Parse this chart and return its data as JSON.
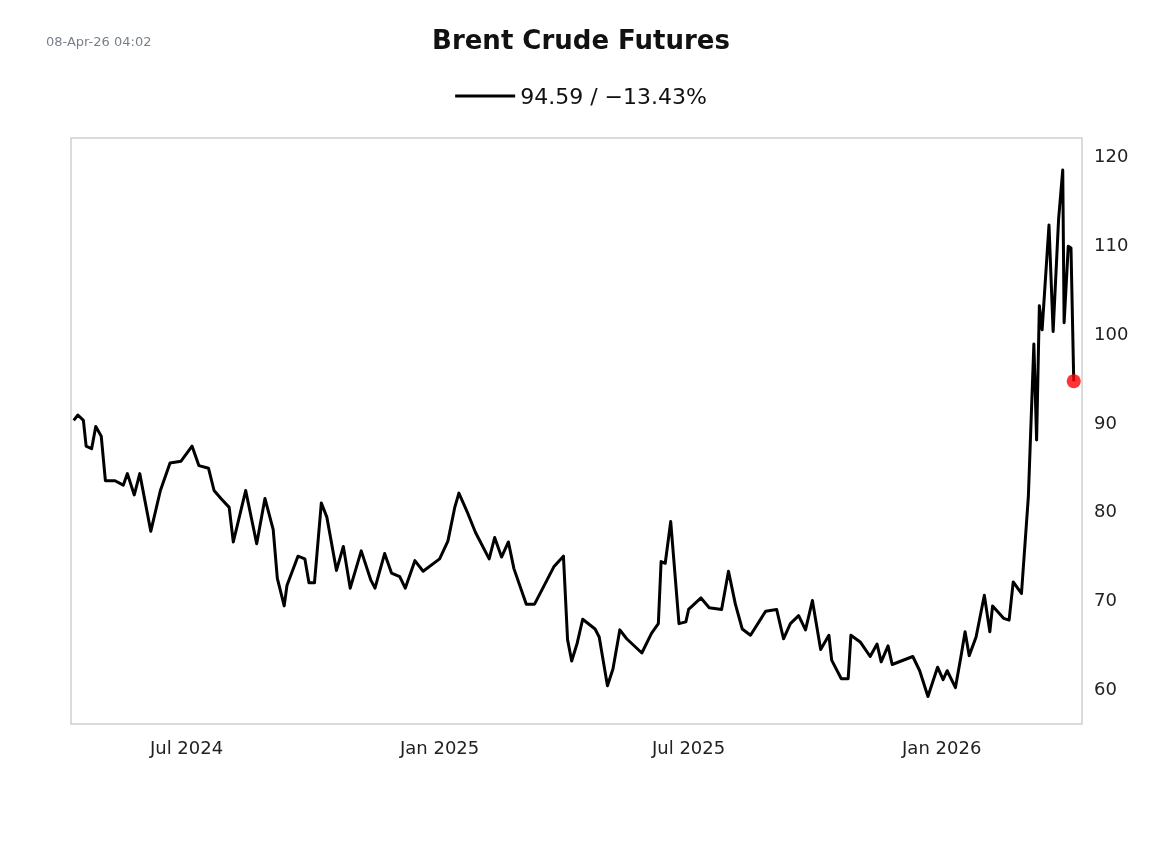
{
  "chart_data": {
    "type": "line",
    "title": "Brent Crude Futures",
    "annotations": [
      "08-Apr-26 04:02"
    ],
    "legend": "top",
    "grid": false,
    "xlim": [
      "2024-04-08",
      "2026-04-13"
    ],
    "ylim": [
      56,
      122
    ],
    "xticks": [
      {
        "value": "2024-07-01",
        "label": "Jul 2024"
      },
      {
        "value": "2025-01-01",
        "label": "Jan 2025"
      },
      {
        "value": "2025-07-01",
        "label": "Jul 2025"
      },
      {
        "value": "2026-01-01",
        "label": "Jan 2026"
      }
    ],
    "yticks": [
      60,
      70,
      80,
      90,
      100,
      110,
      120
    ],
    "series": [
      {
        "name": "94.59 / −13.43%",
        "color": "#000000",
        "x": [
          "2024-04-10",
          "2024-04-13",
          "2024-04-17",
          "2024-04-19",
          "2024-04-23",
          "2024-04-26",
          "2024-04-30",
          "2024-05-03",
          "2024-05-10",
          "2024-05-16",
          "2024-05-19",
          "2024-05-24",
          "2024-05-28",
          "2024-06-05",
          "2024-06-12",
          "2024-06-19",
          "2024-06-27",
          "2024-07-05",
          "2024-07-10",
          "2024-07-17",
          "2024-07-21",
          "2024-07-26",
          "2024-08-01",
          "2024-08-04",
          "2024-08-13",
          "2024-08-21",
          "2024-08-27",
          "2024-09-02",
          "2024-09-05",
          "2024-09-10",
          "2024-09-12",
          "2024-09-20",
          "2024-09-25",
          "2024-09-28",
          "2024-10-02",
          "2024-10-07",
          "2024-10-11",
          "2024-10-18",
          "2024-10-23",
          "2024-10-28",
          "2024-11-05",
          "2024-11-12",
          "2024-11-15",
          "2024-11-22",
          "2024-11-27",
          "2024-12-03",
          "2024-12-07",
          "2024-12-14",
          "2024-12-20",
          "2025-01-01",
          "2025-01-07",
          "2025-01-12",
          "2025-01-15",
          "2025-01-21",
          "2025-01-27",
          "2025-02-06",
          "2025-02-10",
          "2025-02-15",
          "2025-02-20",
          "2025-02-24",
          "2025-03-05",
          "2025-03-11",
          "2025-03-16",
          "2025-03-25",
          "2025-04-01",
          "2025-04-04",
          "2025-04-07",
          "2025-04-11",
          "2025-04-15",
          "2025-04-24",
          "2025-04-27",
          "2025-05-03",
          "2025-05-07",
          "2025-05-12",
          "2025-05-17",
          "2025-05-28",
          "2025-06-04",
          "2025-06-09",
          "2025-06-11",
          "2025-06-14",
          "2025-06-18",
          "2025-06-24",
          "2025-06-29",
          "2025-07-01",
          "2025-07-10",
          "2025-07-16",
          "2025-07-25",
          "2025-07-30",
          "2025-08-04",
          "2025-08-09",
          "2025-08-15",
          "2025-08-26",
          "2025-09-03",
          "2025-09-08",
          "2025-09-13",
          "2025-09-19",
          "2025-09-24",
          "2025-09-29",
          "2025-10-05",
          "2025-10-11",
          "2025-10-13",
          "2025-10-20",
          "2025-10-25",
          "2025-10-27",
          "2025-11-03",
          "2025-11-10",
          "2025-11-15",
          "2025-11-18",
          "2025-11-23",
          "2025-11-26",
          "2025-12-11",
          "2025-12-16",
          "2025-12-22",
          "2025-12-29",
          "2026-01-02",
          "2026-01-05",
          "2026-01-11",
          "2026-01-15",
          "2026-01-18",
          "2026-01-21",
          "2026-01-26",
          "2026-02-01",
          "2026-02-05",
          "2026-02-07",
          "2026-02-15",
          "2026-02-19",
          "2026-02-22",
          "2026-02-28",
          "2026-03-05",
          "2026-03-09",
          "2026-03-11",
          "2026-03-13",
          "2026-03-15",
          "2026-03-20",
          "2026-03-23",
          "2026-03-27",
          "2026-03-30",
          "2026-03-31",
          "2026-04-03",
          "2026-04-05",
          "2026-04-07"
        ],
        "values": [
          90.2,
          90.8,
          90.2,
          87.3,
          87.0,
          89.5,
          88.4,
          83.4,
          83.4,
          82.9,
          84.2,
          81.8,
          84.2,
          77.7,
          82.3,
          85.4,
          85.6,
          87.3,
          85.1,
          84.8,
          82.3,
          81.4,
          80.4,
          76.5,
          82.3,
          76.3,
          81.4,
          77.9,
          72.4,
          69.3,
          71.6,
          74.9,
          74.6,
          71.9,
          71.9,
          80.9,
          79.3,
          73.3,
          76.0,
          71.3,
          75.5,
          72.2,
          71.3,
          75.2,
          73.0,
          72.6,
          71.3,
          74.4,
          73.2,
          74.6,
          76.6,
          80.4,
          82.0,
          79.9,
          77.6,
          74.6,
          77.0,
          74.8,
          76.5,
          73.5,
          69.5,
          69.5,
          71.0,
          73.7,
          74.9,
          65.5,
          63.1,
          65.1,
          67.8,
          66.7,
          65.8,
          60.3,
          62.2,
          66.6,
          65.6,
          64.0,
          66.2,
          67.3,
          74.3,
          74.1,
          78.8,
          67.3,
          67.5,
          68.9,
          70.2,
          69.1,
          68.9,
          73.2,
          69.5,
          66.7,
          66.0,
          68.7,
          68.9,
          65.6,
          67.3,
          68.2,
          66.6,
          69.9,
          64.4,
          66.0,
          63.2,
          61.1,
          61.1,
          66.0,
          65.2,
          63.6,
          65.0,
          63.0,
          64.8,
          62.7,
          63.6,
          62.0,
          59.1,
          62.4,
          61.0,
          62.0,
          60.1,
          63.6,
          66.4,
          63.7,
          65.8,
          70.5,
          66.4,
          69.3,
          67.9,
          67.7,
          72.0,
          70.7,
          81.6,
          98.8,
          88.0,
          103.1,
          100.4,
          112.2,
          100.2,
          112.9,
          118.4,
          101.2,
          109.8,
          109.6,
          94.6
        ]
      },
      {
        "type": "scatter",
        "marker": "circle",
        "color": "#ff0000",
        "x": [
          "2026-04-07"
        ],
        "values": [
          94.6
        ]
      }
    ]
  }
}
